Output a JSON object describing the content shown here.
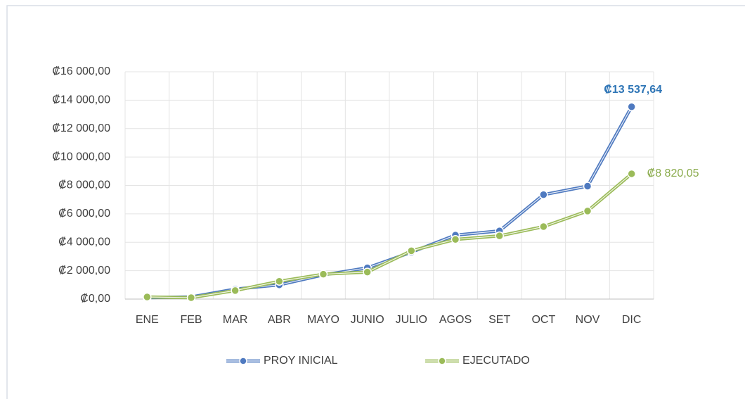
{
  "chart_data": {
    "type": "line",
    "categories": [
      "ENE",
      "FEB",
      "MAR",
      "ABR",
      "MAYO",
      "JUNIO",
      "JULIO",
      "AGOS",
      "SET",
      "OCT",
      "NOV",
      "DIC"
    ],
    "series": [
      {
        "name": "PROY INICIAL",
        "color": "#4f7ac0",
        "values": [
          100,
          150,
          700,
          1000,
          1700,
          2200,
          3300,
          4500,
          4800,
          7350,
          7950,
          13537.64
        ],
        "value_labels": [
          null,
          null,
          null,
          null,
          null,
          null,
          null,
          null,
          null,
          null,
          null,
          "₡13 537,64"
        ]
      },
      {
        "name": "EJECUTADO",
        "color": "#9bbb59",
        "values": [
          150,
          100,
          600,
          1250,
          1750,
          1900,
          3400,
          4200,
          4450,
          5100,
          6200,
          8820.05
        ],
        "value_labels": [
          null,
          null,
          null,
          null,
          null,
          null,
          null,
          null,
          null,
          null,
          null,
          "₡8 820,05"
        ]
      }
    ],
    "ylim": [
      0,
      16000
    ],
    "yticks": [
      {
        "value": 0,
        "label": "₡0,00"
      },
      {
        "value": 2000,
        "label": "₡2 000,00"
      },
      {
        "value": 4000,
        "label": "₡4 000,00"
      },
      {
        "value": 6000,
        "label": "₡6 000,00"
      },
      {
        "value": 8000,
        "label": "₡8 000,00"
      },
      {
        "value": 10000,
        "label": "₡10 000,00"
      },
      {
        "value": 12000,
        "label": "₡12 000,00"
      },
      {
        "value": 14000,
        "label": "₡14 000,00"
      },
      {
        "value": 16000,
        "label": "₡16 000,00"
      }
    ],
    "grid": true,
    "legend": "bottom"
  }
}
